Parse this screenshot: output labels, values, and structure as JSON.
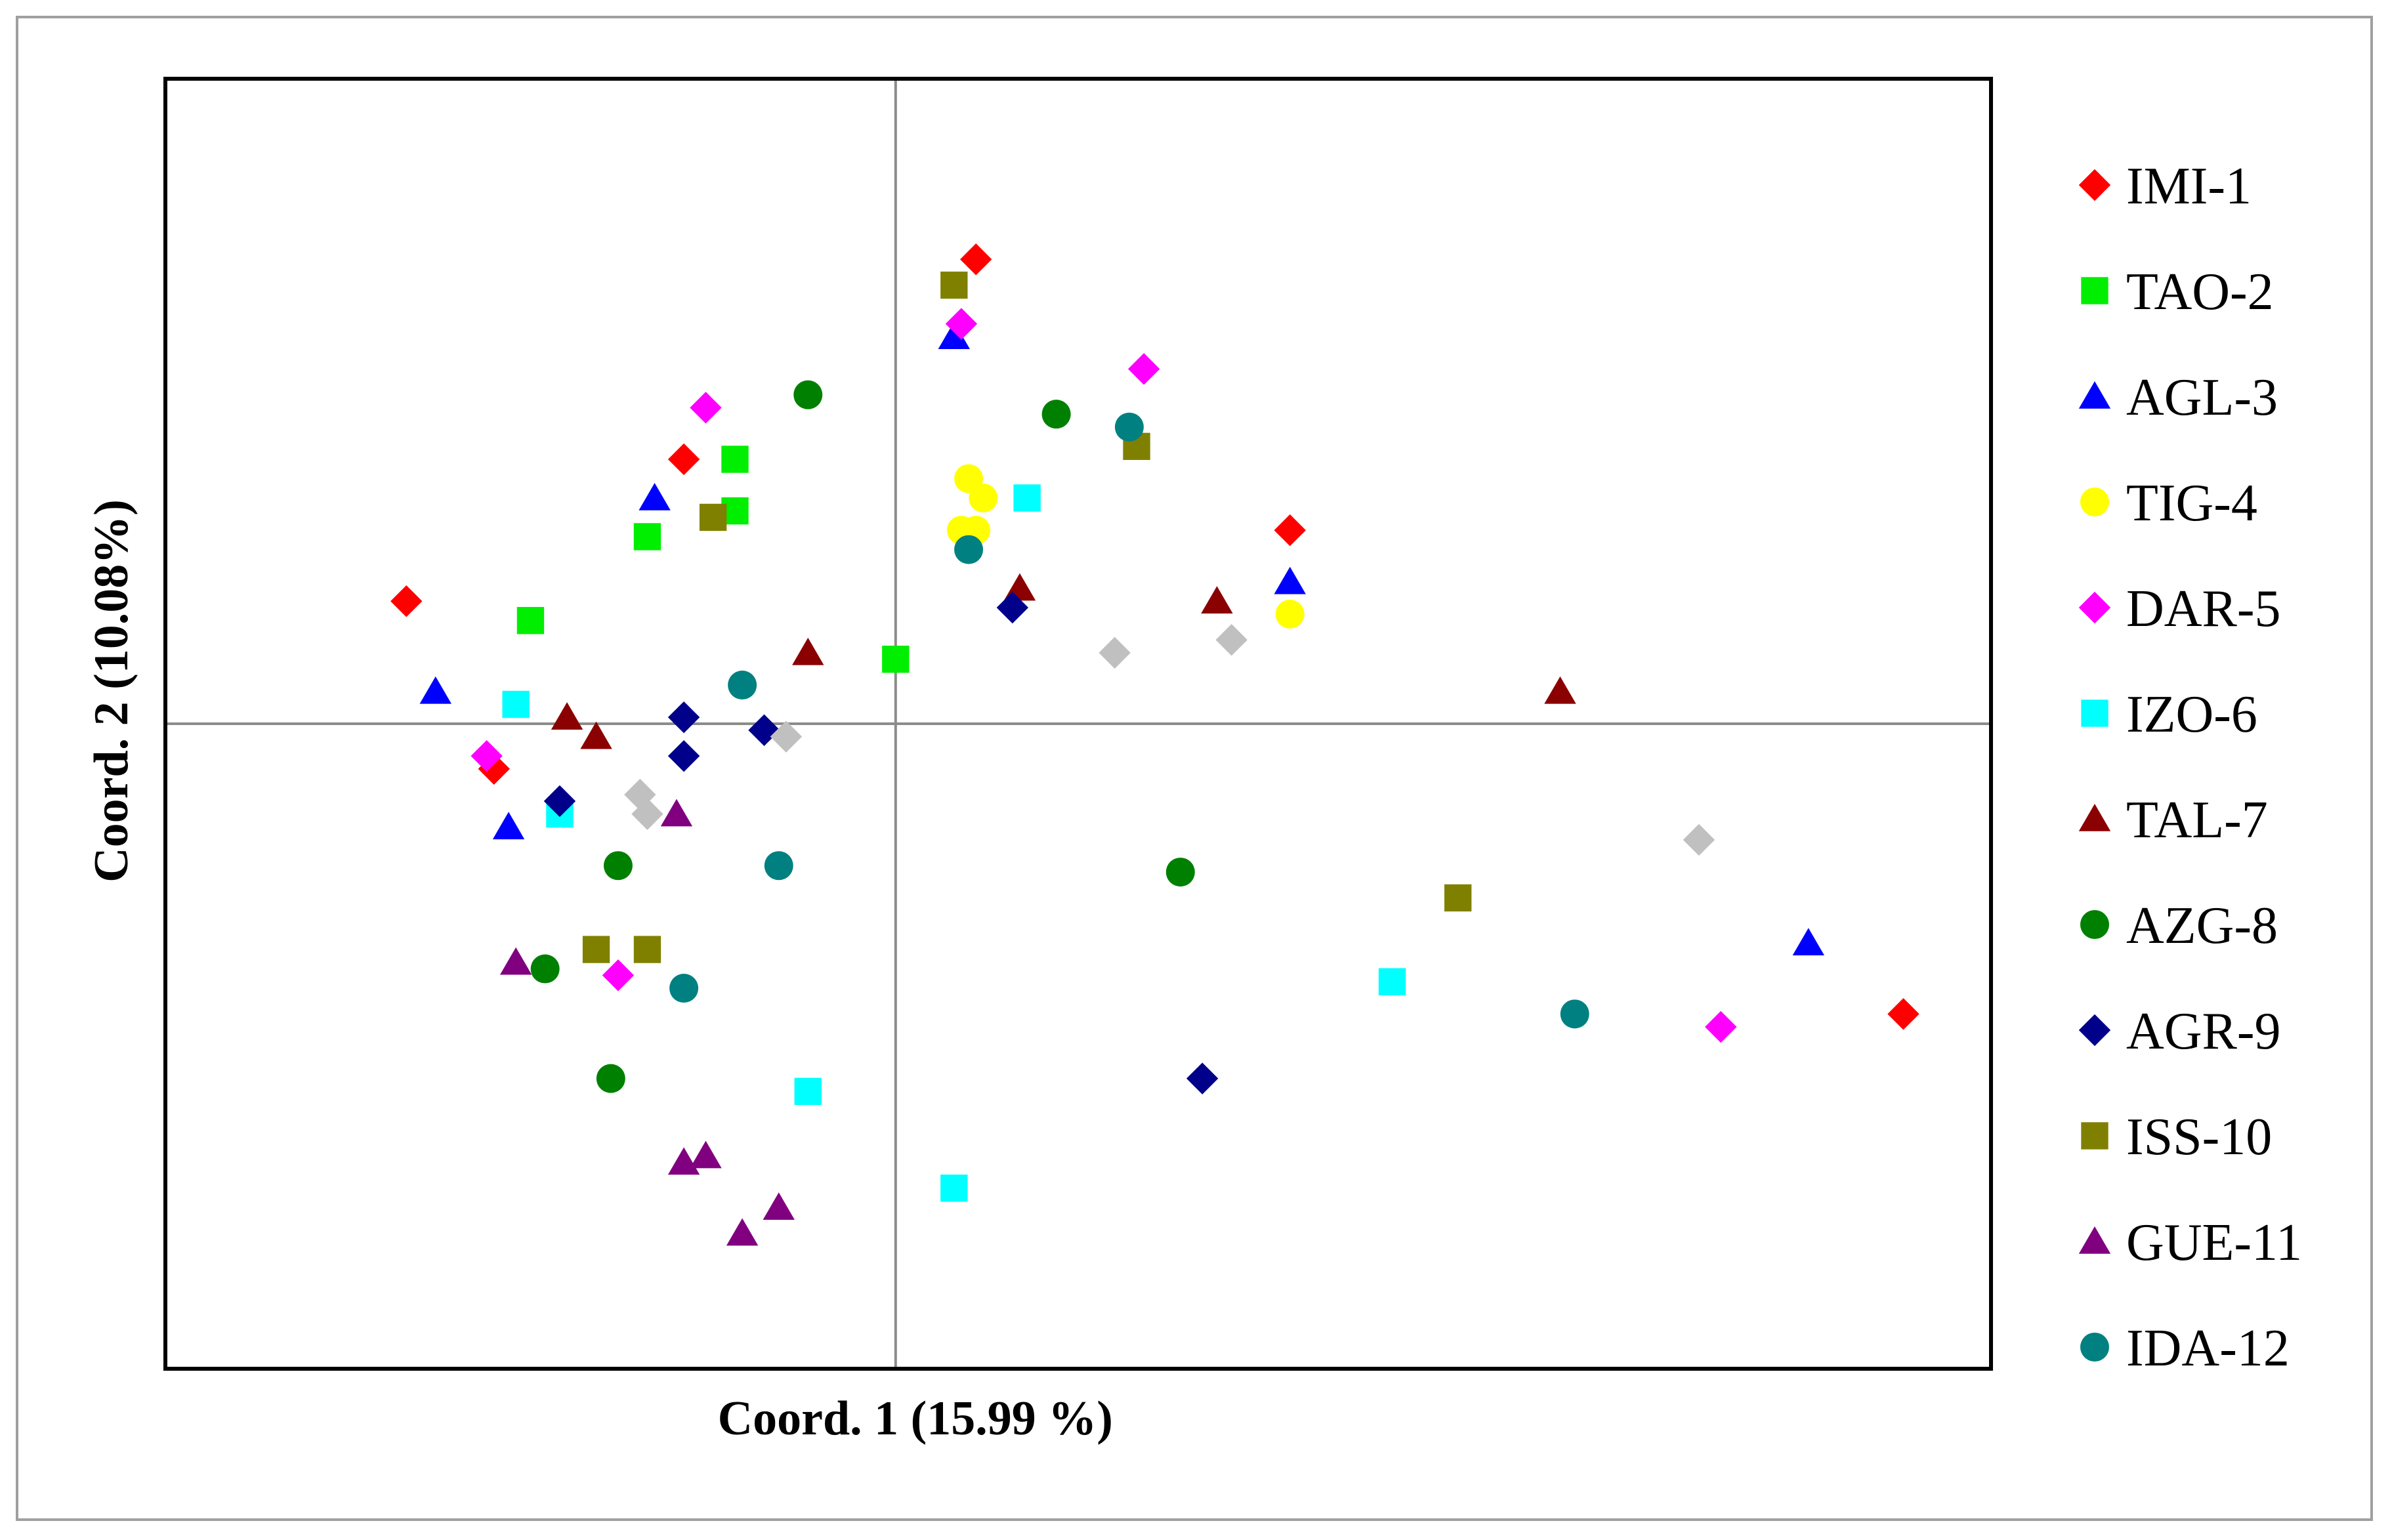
{
  "chart_data": {
    "type": "scatter",
    "title": "",
    "xlabel": "Coord. 1 (15.99 %)",
    "ylabel": "Coord. 2 (10.08%)",
    "xlim": [
      -1.0,
      1.5
    ],
    "ylim": [
      -1.0,
      1.0
    ],
    "grid": false,
    "axis_lines_through_origin": true,
    "legend_position": "right",
    "series": [
      {
        "name": "IMI-1",
        "marker": "diamond",
        "color": "#ff0000",
        "points": [
          [
            0.11,
            0.72
          ],
          [
            -0.29,
            0.41
          ],
          [
            0.54,
            0.3
          ],
          [
            -0.67,
            0.19
          ],
          [
            -0.55,
            -0.07
          ],
          [
            1.38,
            -0.45
          ]
        ]
      },
      {
        "name": "TAO-2",
        "marker": "square",
        "color": "#00ee00",
        "points": [
          [
            -0.22,
            0.41
          ],
          [
            -0.22,
            0.33
          ],
          [
            -0.34,
            0.29
          ],
          [
            -0.5,
            0.16
          ],
          [
            0.0,
            0.1
          ]
        ]
      },
      {
        "name": "AGL-3",
        "marker": "triangle",
        "color": "#0000ff",
        "points": [
          [
            0.08,
            0.6
          ],
          [
            -0.33,
            0.35
          ],
          [
            0.54,
            0.22
          ],
          [
            -0.63,
            0.05
          ],
          [
            -0.53,
            -0.16
          ],
          [
            1.25,
            -0.34
          ]
        ]
      },
      {
        "name": "TIG-4",
        "marker": "circle",
        "color": "#ffff00",
        "points": [
          [
            0.1,
            0.38
          ],
          [
            0.12,
            0.35
          ],
          [
            0.09,
            0.3
          ],
          [
            0.11,
            0.3
          ],
          [
            0.54,
            0.17
          ]
        ]
      },
      {
        "name": "DAR-5",
        "marker": "diamond",
        "color": "#ff00ff",
        "points": [
          [
            0.09,
            0.62
          ],
          [
            0.34,
            0.55
          ],
          [
            -0.26,
            0.49
          ],
          [
            -0.56,
            -0.05
          ],
          [
            -0.38,
            -0.39
          ],
          [
            1.13,
            -0.47
          ]
        ]
      },
      {
        "name": "IZO-6",
        "marker": "square",
        "color": "#00ffff",
        "points": [
          [
            0.18,
            0.35
          ],
          [
            -0.52,
            0.03
          ],
          [
            -0.46,
            -0.14
          ],
          [
            0.68,
            -0.4
          ],
          [
            -0.12,
            -0.57
          ],
          [
            0.08,
            -0.72
          ]
        ]
      },
      {
        "name": "TAL-7",
        "marker": "triangle",
        "color": "#8b0000",
        "points": [
          [
            0.17,
            0.21
          ],
          [
            0.44,
            0.19
          ],
          [
            -0.12,
            0.11
          ],
          [
            0.91,
            0.05
          ],
          [
            -0.45,
            0.01
          ],
          [
            -0.41,
            -0.02
          ]
        ]
      },
      {
        "name": "AZG-8",
        "marker": "circle",
        "color": "#008000",
        "points": [
          [
            -0.12,
            0.51
          ],
          [
            0.22,
            0.48
          ],
          [
            -0.38,
            -0.22
          ],
          [
            0.39,
            -0.23
          ],
          [
            -0.48,
            -0.38
          ],
          [
            -0.39,
            -0.55
          ]
        ]
      },
      {
        "name": "AGR-9",
        "marker": "diamond",
        "color": "#00008b",
        "points": [
          [
            0.16,
            0.18
          ],
          [
            -0.29,
            0.01
          ],
          [
            -0.18,
            -0.01
          ],
          [
            -0.29,
            -0.05
          ],
          [
            -0.46,
            -0.12
          ],
          [
            0.42,
            -0.55
          ]
        ]
      },
      {
        "name": "ISS-10",
        "marker": "square",
        "color": "#808000",
        "points": [
          [
            0.08,
            0.68
          ],
          [
            0.33,
            0.43
          ],
          [
            -0.25,
            0.32
          ],
          [
            0.77,
            -0.27
          ],
          [
            -0.41,
            -0.35
          ],
          [
            -0.34,
            -0.35
          ]
        ]
      },
      {
        "name": "GUE-11",
        "marker": "triangle",
        "color": "#800080",
        "points": [
          [
            -0.3,
            -0.14
          ],
          [
            -0.52,
            -0.37
          ],
          [
            -0.26,
            -0.67
          ],
          [
            -0.29,
            -0.68
          ],
          [
            -0.16,
            -0.75
          ],
          [
            -0.21,
            -0.79
          ]
        ]
      },
      {
        "name": "IDA-12",
        "marker": "circle",
        "color": "#008080",
        "points": [
          [
            0.32,
            0.46
          ],
          [
            0.1,
            0.27
          ],
          [
            -0.21,
            0.06
          ],
          [
            -0.16,
            -0.22
          ],
          [
            -0.29,
            -0.41
          ],
          [
            0.93,
            -0.45
          ]
        ]
      },
      {
        "name": "",
        "marker": "diamond",
        "color": "#c0c0c0",
        "points": [
          [
            0.3,
            0.11
          ],
          [
            0.46,
            0.13
          ],
          [
            -0.15,
            -0.02
          ],
          [
            -0.35,
            -0.11
          ],
          [
            -0.34,
            -0.14
          ],
          [
            1.1,
            -0.18
          ]
        ]
      }
    ]
  }
}
